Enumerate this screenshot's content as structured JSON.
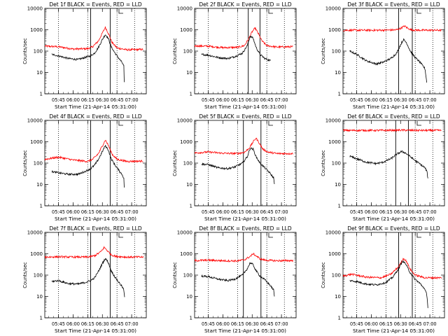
{
  "chart_data": [
    {
      "type": "line",
      "title": "Det 1f BLACK = Events, RED = LLD",
      "xlabel": "Start Time (21-Apr-14 05:31:00)",
      "ylabel": "Counts/sec",
      "yscale": "log",
      "ylim": [
        1,
        10000
      ],
      "ytick_labels": [
        "1",
        "10",
        "100",
        "1000",
        "10000"
      ],
      "xlim": [
        "05:31",
        "07:15"
      ],
      "xtick_labels": [
        "05:45",
        "06:00",
        "06:15",
        "06:30",
        "06:45",
        "07:00"
      ],
      "vlines_dotted": [
        "05:45",
        "06:15",
        "06:45",
        "07:03"
      ],
      "vlines_solid": [
        "06:18",
        "06:38"
      ],
      "series": [
        {
          "name": "RED = LLD",
          "color": "#ff0000",
          "x": [
            "05:31",
            "05:45",
            "06:00",
            "06:15",
            "06:20",
            "06:26",
            "06:30",
            "06:33",
            "06:36",
            "06:40",
            "06:45",
            "06:55",
            "07:12"
          ],
          "values": [
            170,
            160,
            125,
            130,
            160,
            300,
            700,
            1300,
            700,
            250,
            140,
            115,
            120
          ]
        },
        {
          "name": "BLACK = Events",
          "color": "#000000",
          "x": [
            "05:38",
            "05:45",
            "05:55",
            "06:05",
            "06:12",
            "06:18",
            "06:22",
            "06:26",
            "06:30",
            "06:33",
            "06:36",
            "06:39",
            "06:43",
            "06:47",
            "06:50",
            "06:52",
            "06:52.5"
          ],
          "values": [
            70,
            60,
            45,
            40,
            50,
            60,
            80,
            150,
            350,
            600,
            400,
            160,
            80,
            45,
            30,
            20,
            2
          ]
        }
      ]
    },
    {
      "type": "line",
      "title": "Det 2f BLACK = Events, RED = LLD",
      "xlabel": "Start Time (21-Apr-14 05:31:00)",
      "ylabel": "Counts/sec",
      "yscale": "log",
      "ylim": [
        1,
        10000
      ],
      "ytick_labels": [
        "1",
        "10",
        "100",
        "1000",
        "10000"
      ],
      "xlim": [
        "05:31",
        "07:15"
      ],
      "xtick_labels": [
        "05:45",
        "06:00",
        "06:15",
        "06:30",
        "06:45",
        "07:00"
      ],
      "vlines_dotted": [
        "05:45",
        "06:15",
        "06:45",
        "07:03"
      ],
      "vlines_solid": [
        "06:26",
        "06:38"
      ],
      "series": [
        {
          "name": "RED = LLD",
          "color": "#ff0000",
          "x": [
            "05:31",
            "05:45",
            "06:00",
            "06:15",
            "06:22",
            "06:26",
            "06:30",
            "06:33",
            "06:36",
            "06:40",
            "06:45",
            "06:55",
            "07:12"
          ],
          "values": [
            175,
            170,
            145,
            150,
            180,
            350,
            800,
            1200,
            700,
            300,
            180,
            155,
            160
          ]
        },
        {
          "name": "BLACK = Events",
          "color": "#000000",
          "x": [
            "05:38",
            "05:45",
            "05:55",
            "06:05",
            "06:12",
            "06:20",
            "06:25",
            "06:28",
            "06:31",
            "06:34",
            "06:38",
            "06:43",
            "06:49"
          ],
          "values": [
            70,
            65,
            50,
            45,
            55,
            80,
            180,
            500,
            400,
            150,
            70,
            45,
            35
          ]
        }
      ]
    },
    {
      "type": "line",
      "title": "Det 3f BLACK = Events, RED = LLD",
      "xlabel": "Start Time (21-Apr-14 05:31:00)",
      "ylabel": "Counts/sec",
      "yscale": "log",
      "ylim": [
        1,
        10000
      ],
      "ytick_labels": [
        "1",
        "10",
        "100",
        "1000",
        "10000"
      ],
      "xlim": [
        "05:31",
        "07:15"
      ],
      "xtick_labels": [
        "05:45",
        "06:00",
        "06:15",
        "06:30",
        "06:45",
        "07:00"
      ],
      "vlines_dotted": [
        "05:45",
        "06:15",
        "06:45",
        "07:03"
      ],
      "vlines_solid": [
        "06:28",
        "06:42"
      ],
      "series": [
        {
          "name": "RED = LLD",
          "color": "#ff0000",
          "x": [
            "05:31",
            "06:10",
            "06:25",
            "06:30",
            "06:34",
            "06:37",
            "06:41",
            "06:50",
            "07:12"
          ],
          "values": [
            950,
            950,
            980,
            1150,
            1500,
            1200,
            980,
            950,
            950
          ]
        },
        {
          "name": "BLACK = Events",
          "color": "#000000",
          "x": [
            "05:38",
            "05:45",
            "05:55",
            "06:05",
            "06:12",
            "06:20",
            "06:26",
            "06:30",
            "06:33",
            "06:36",
            "06:40",
            "06:45",
            "06:50",
            "06:55",
            "06:57"
          ],
          "values": [
            100,
            70,
            35,
            25,
            30,
            45,
            80,
            200,
            350,
            250,
            100,
            50,
            30,
            15,
            3
          ]
        }
      ]
    },
    {
      "type": "line",
      "title": "Det 4f BLACK = Events, RED = LLD",
      "xlabel": "Start Time (21-Apr-14 05:31:00)",
      "ylabel": "Counts/sec",
      "yscale": "log",
      "ylim": [
        1,
        10000
      ],
      "ytick_labels": [
        "1",
        "10",
        "100",
        "1000",
        "10000"
      ],
      "xlim": [
        "05:31",
        "07:15"
      ],
      "xtick_labels": [
        "05:45",
        "06:00",
        "06:15",
        "06:30",
        "06:45",
        "07:00"
      ],
      "vlines_dotted": [
        "05:45",
        "06:15",
        "06:45",
        "07:03"
      ],
      "vlines_solid": [
        "06:18",
        "06:38"
      ],
      "series": [
        {
          "name": "RED = LLD",
          "color": "#ff0000",
          "x": [
            "05:31",
            "05:45",
            "06:00",
            "06:15",
            "06:20",
            "06:26",
            "06:30",
            "06:33",
            "06:36",
            "06:40",
            "06:45",
            "06:55",
            "07:12"
          ],
          "values": [
            150,
            190,
            140,
            120,
            150,
            280,
            650,
            1200,
            700,
            260,
            150,
            120,
            125
          ]
        },
        {
          "name": "BLACK = Events",
          "color": "#000000",
          "x": [
            "05:38",
            "05:45",
            "05:55",
            "06:05",
            "06:12",
            "06:18",
            "06:22",
            "06:26",
            "06:30",
            "06:33",
            "06:36",
            "06:39",
            "06:43",
            "06:47",
            "06:50",
            "06:52",
            "06:52.5"
          ],
          "values": [
            40,
            35,
            30,
            30,
            40,
            55,
            80,
            150,
            350,
            650,
            420,
            160,
            80,
            45,
            30,
            20,
            5
          ]
        }
      ]
    },
    {
      "type": "line",
      "title": "Det 5f BLACK = Events, RED = LLD",
      "xlabel": "Start Time (21-Apr-14 05:31:00)",
      "ylabel": "Counts/sec",
      "yscale": "log",
      "ylim": [
        1,
        10000
      ],
      "ytick_labels": [
        "1",
        "10",
        "100",
        "1000",
        "10000"
      ],
      "xlim": [
        "05:31",
        "07:15"
      ],
      "xtick_labels": [
        "05:45",
        "06:00",
        "06:15",
        "06:30",
        "06:45",
        "07:00"
      ],
      "vlines_dotted": [
        "05:45",
        "06:15",
        "06:45",
        "07:03"
      ],
      "vlines_solid": [
        "06:21",
        "06:39"
      ],
      "series": [
        {
          "name": "RED = LLD",
          "color": "#ff0000",
          "x": [
            "05:31",
            "05:45",
            "06:00",
            "06:15",
            "06:22",
            "06:27",
            "06:31",
            "06:34",
            "06:37",
            "06:41",
            "06:46",
            "06:55",
            "07:12"
          ],
          "values": [
            300,
            330,
            290,
            280,
            320,
            500,
            1000,
            1500,
            900,
            450,
            330,
            280,
            280
          ]
        },
        {
          "name": "BLACK = Events",
          "color": "#000000",
          "x": [
            "05:38",
            "05:45",
            "05:55",
            "06:05",
            "06:12",
            "06:20",
            "06:25",
            "06:28",
            "06:31",
            "06:34",
            "06:38",
            "06:43",
            "06:48",
            "06:52",
            "06:53"
          ],
          "values": [
            90,
            85,
            60,
            55,
            65,
            100,
            200,
            500,
            450,
            200,
            100,
            60,
            35,
            20,
            10
          ]
        }
      ]
    },
    {
      "type": "line",
      "title": "Det 6f BLACK = Events, RED = LLD",
      "xlabel": "Start Time (21-Apr-14 05:31:00)",
      "ylabel": "Counts/sec",
      "yscale": "log",
      "ylim": [
        1,
        10000
      ],
      "ytick_labels": [
        "1",
        "10",
        "100",
        "1000",
        "10000"
      ],
      "xlim": [
        "05:31",
        "07:15"
      ],
      "xtick_labels": [
        "05:45",
        "06:00",
        "06:15",
        "06:30",
        "06:45",
        "07:00"
      ],
      "vlines_dotted": [
        "05:45",
        "06:15",
        "06:45",
        "07:03"
      ],
      "vlines_solid": [
        "06:25",
        "06:38"
      ],
      "series": [
        {
          "name": "RED = LLD",
          "color": "#ff0000",
          "x": [
            "05:31",
            "06:15",
            "06:30",
            "06:45",
            "07:12"
          ],
          "values": [
            3400,
            3400,
            3500,
            3400,
            3400
          ]
        },
        {
          "name": "BLACK = Events",
          "color": "#000000",
          "x": [
            "05:38",
            "05:45",
            "05:55",
            "06:05",
            "06:12",
            "06:20",
            "06:26",
            "06:31",
            "06:35",
            "06:40",
            "06:45",
            "06:50",
            "06:55",
            "06:57",
            "06:58"
          ],
          "values": [
            210,
            160,
            110,
            95,
            110,
            160,
            260,
            350,
            300,
            200,
            130,
            90,
            60,
            40,
            20
          ]
        }
      ]
    },
    {
      "type": "line",
      "title": "Det 7f BLACK = Events, RED = LLD",
      "xlabel": "Start Time (21-Apr-14 05:31:00)",
      "ylabel": "Counts/sec",
      "yscale": "log",
      "ylim": [
        1,
        10000
      ],
      "ytick_labels": [
        "1",
        "10",
        "100",
        "1000",
        "10000"
      ],
      "xlim": [
        "05:31",
        "07:15"
      ],
      "xtick_labels": [
        "05:45",
        "06:00",
        "06:15",
        "06:30",
        "06:45",
        "07:00"
      ],
      "vlines_dotted": [
        "05:45",
        "06:15",
        "06:45",
        "07:03"
      ],
      "vlines_solid": [
        "06:18",
        "06:38"
      ],
      "series": [
        {
          "name": "RED = LLD",
          "color": "#ff0000",
          "x": [
            "05:31",
            "05:45",
            "06:00",
            "06:15",
            "06:22",
            "06:28",
            "06:32",
            "06:35",
            "06:39",
            "06:44",
            "06:55",
            "07:12"
          ],
          "values": [
            700,
            720,
            700,
            700,
            800,
            1200,
            2000,
            1400,
            900,
            750,
            700,
            700
          ]
        },
        {
          "name": "BLACK = Events",
          "color": "#000000",
          "x": [
            "05:38",
            "05:45",
            "05:55",
            "06:05",
            "06:12",
            "06:18",
            "06:22",
            "06:26",
            "06:30",
            "06:33",
            "06:36",
            "06:39",
            "06:43",
            "06:47",
            "06:50",
            "06:52",
            "06:53"
          ],
          "values": [
            50,
            55,
            40,
            38,
            45,
            55,
            75,
            150,
            350,
            600,
            400,
            160,
            80,
            45,
            30,
            20,
            7
          ]
        }
      ]
    },
    {
      "type": "line",
      "title": "Det 8f BLACK = Events, RED = LLD",
      "xlabel": "Start Time (21-Apr-14 05:31:00)",
      "ylabel": "Counts/sec",
      "yscale": "log",
      "ylim": [
        1,
        10000
      ],
      "ytick_labels": [
        "1",
        "10",
        "100",
        "1000",
        "10000"
      ],
      "xlim": [
        "05:31",
        "07:15"
      ],
      "xtick_labels": [
        "05:45",
        "06:00",
        "06:15",
        "06:30",
        "06:45",
        "07:00"
      ],
      "vlines_dotted": [
        "05:45",
        "06:15",
        "06:45",
        "07:03"
      ],
      "vlines_solid": [
        "06:21",
        "06:39"
      ],
      "series": [
        {
          "name": "RED = LLD",
          "color": "#ff0000",
          "x": [
            "05:31",
            "05:45",
            "06:00",
            "06:15",
            "06:22",
            "06:28",
            "06:31",
            "06:34",
            "06:38",
            "06:43",
            "06:55",
            "07:12"
          ],
          "values": [
            480,
            500,
            470,
            460,
            520,
            750,
            1000,
            800,
            580,
            500,
            470,
            480
          ]
        },
        {
          "name": "BLACK = Events",
          "color": "#000000",
          "x": [
            "05:38",
            "05:45",
            "05:55",
            "06:05",
            "06:12",
            "06:20",
            "06:25",
            "06:28",
            "06:31",
            "06:34",
            "06:38",
            "06:43",
            "06:48",
            "06:52",
            "06:53"
          ],
          "values": [
            90,
            85,
            65,
            55,
            65,
            100,
            200,
            380,
            300,
            160,
            90,
            60,
            35,
            20,
            8
          ]
        }
      ]
    },
    {
      "type": "line",
      "title": "Det 9f BLACK = Events, RED = LLD",
      "xlabel": "Start Time (21-Apr-14 05:31:00)",
      "ylabel": "Counts/sec",
      "yscale": "log",
      "ylim": [
        1,
        10000
      ],
      "ytick_labels": [
        "1",
        "10",
        "100",
        "1000",
        "10000"
      ],
      "xlim": [
        "05:31",
        "07:15"
      ],
      "xtick_labels": [
        "05:45",
        "06:00",
        "06:15",
        "06:30",
        "06:45",
        "07:00"
      ],
      "vlines_dotted": [
        "05:45",
        "06:15",
        "06:45",
        "07:03"
      ],
      "vlines_solid": [
        "06:28",
        "06:42"
      ],
      "series": [
        {
          "name": "RED = LLD",
          "color": "#ff0000",
          "x": [
            "05:31",
            "05:40",
            "05:55",
            "06:10",
            "06:20",
            "06:28",
            "06:33",
            "06:36",
            "06:40",
            "06:45",
            "06:55",
            "07:12"
          ],
          "values": [
            90,
            110,
            80,
            75,
            110,
            250,
            600,
            450,
            180,
            100,
            75,
            75
          ]
        },
        {
          "name": "BLACK = Events",
          "color": "#000000",
          "x": [
            "05:38",
            "05:45",
            "05:55",
            "06:05",
            "06:15",
            "06:22",
            "06:28",
            "06:32",
            "06:35",
            "06:39",
            "06:44",
            "06:50",
            "06:54",
            "06:57",
            "06:58"
          ],
          "values": [
            55,
            50,
            38,
            35,
            45,
            80,
            200,
            450,
            350,
            150,
            70,
            40,
            25,
            12,
            3
          ]
        }
      ]
    }
  ]
}
